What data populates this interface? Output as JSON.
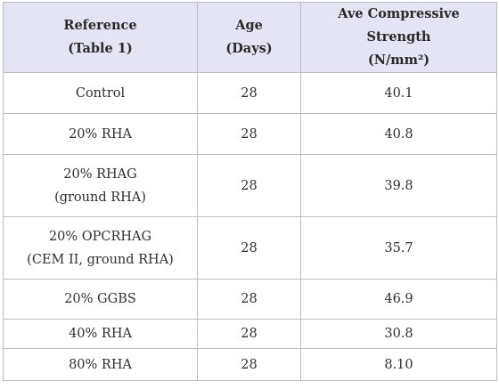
{
  "table": {
    "headers": [
      {
        "line1": "Reference",
        "line2": "(Table 1)"
      },
      {
        "line1": "Age",
        "line2": "(Days)"
      },
      {
        "line1": "Ave Compressive Strength",
        "line2": "(N/mm²)"
      }
    ],
    "rows": [
      {
        "reference": {
          "line1": "Control",
          "line2": ""
        },
        "age": "28",
        "strength": "40.1"
      },
      {
        "reference": {
          "line1": "20% RHA",
          "line2": ""
        },
        "age": "28",
        "strength": "40.8"
      },
      {
        "reference": {
          "line1": "20% RHAG",
          "line2": "(ground RHA)"
        },
        "age": "28",
        "strength": "39.8"
      },
      {
        "reference": {
          "line1": "20% OPCRHAG",
          "line2": "(CEM II, ground RHA)"
        },
        "age": "28",
        "strength": "35.7"
      },
      {
        "reference": {
          "line1": "20% GGBS",
          "line2": ""
        },
        "age": "28",
        "strength": "46.9"
      },
      {
        "reference": {
          "line1": "40% RHA",
          "line2": ""
        },
        "age": "28",
        "strength": "30.8"
      },
      {
        "reference": {
          "line1": "80% RHA",
          "line2": ""
        },
        "age": "28",
        "strength": "8.10"
      }
    ]
  }
}
